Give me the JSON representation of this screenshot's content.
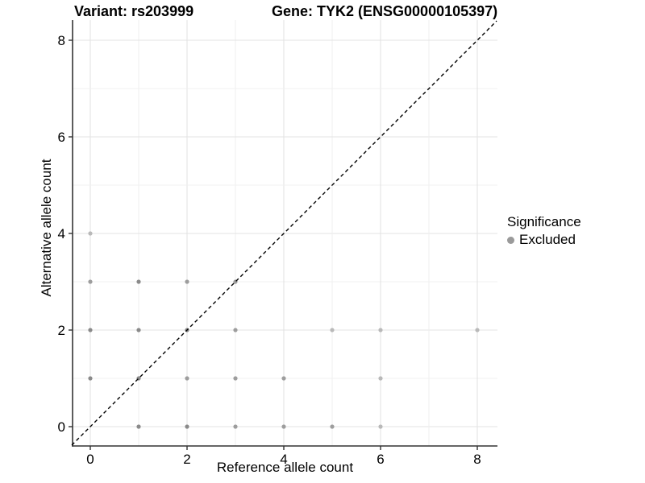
{
  "titles": {
    "variant": "Variant: rs203999",
    "gene": "Gene: TYK2 (ENSG00000105397)"
  },
  "legend": {
    "title": "Significance",
    "items": [
      {
        "label": "Excluded",
        "color": "#9a9a9a"
      }
    ]
  },
  "chart_data": {
    "type": "scatter",
    "title": "Variant: rs203999   Gene: TYK2 (ENSG00000105397)",
    "xlabel": "Reference allele count",
    "ylabel": "Alternative allele count",
    "xlim": [
      -0.37,
      8.42
    ],
    "ylim": [
      -0.4,
      8.42
    ],
    "x_ticks": [
      0,
      2,
      4,
      6,
      8
    ],
    "y_ticks": [
      0,
      2,
      4,
      6,
      8
    ],
    "grid": "unit gridlines at every integer 0-8 on both axes, major at even values",
    "legend_position": "right",
    "identity_line": {
      "type": "dashed",
      "slope": 1,
      "intercept": 0,
      "color": "#000000"
    },
    "series": [
      {
        "name": "Excluded",
        "points": [
          {
            "x": 1,
            "y": 0,
            "shade": "dark"
          },
          {
            "x": 2,
            "y": 0,
            "shade": "dark"
          },
          {
            "x": 3,
            "y": 0,
            "shade": "medium"
          },
          {
            "x": 4,
            "y": 0,
            "shade": "medium"
          },
          {
            "x": 5,
            "y": 0,
            "shade": "medium"
          },
          {
            "x": 6,
            "y": 0,
            "shade": "light"
          },
          {
            "x": 0,
            "y": 1,
            "shade": "dark"
          },
          {
            "x": 1,
            "y": 1,
            "shade": "dark"
          },
          {
            "x": 2,
            "y": 1,
            "shade": "medium"
          },
          {
            "x": 3,
            "y": 1,
            "shade": "medium"
          },
          {
            "x": 4,
            "y": 1,
            "shade": "medium"
          },
          {
            "x": 6,
            "y": 1,
            "shade": "light"
          },
          {
            "x": 0,
            "y": 2,
            "shade": "dark"
          },
          {
            "x": 1,
            "y": 2,
            "shade": "dark"
          },
          {
            "x": 2,
            "y": 2,
            "shade": "dark"
          },
          {
            "x": 3,
            "y": 2,
            "shade": "medium"
          },
          {
            "x": 5,
            "y": 2,
            "shade": "light"
          },
          {
            "x": 6,
            "y": 2,
            "shade": "light"
          },
          {
            "x": 8,
            "y": 2,
            "shade": "light"
          },
          {
            "x": 0,
            "y": 3,
            "shade": "medium"
          },
          {
            "x": 1,
            "y": 3,
            "shade": "dark"
          },
          {
            "x": 2,
            "y": 3,
            "shade": "medium"
          },
          {
            "x": 3,
            "y": 3,
            "shade": "medium"
          },
          {
            "x": 0,
            "y": 4,
            "shade": "light"
          }
        ]
      }
    ],
    "style": {
      "point_shades": {
        "dark": "#8a8a8a",
        "medium": "#9d9d9d",
        "light": "#b9b9b9"
      },
      "grid_major": "#e3e3e3",
      "grid_minor": "#f0f0f0",
      "axis_line": "#333333",
      "background": "#ffffff"
    }
  }
}
